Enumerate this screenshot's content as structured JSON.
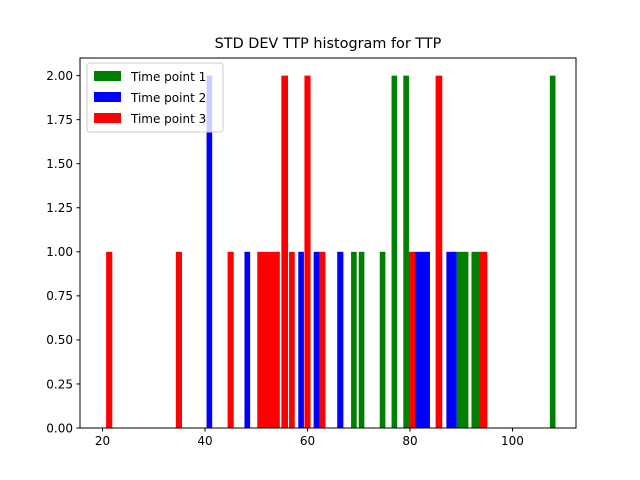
{
  "chart_data": {
    "type": "bar",
    "title": "STD DEV TTP histogram for TTP",
    "xlabel": "",
    "ylabel": "",
    "xlim": [
      15.6,
      112.4
    ],
    "ylim": [
      0,
      2.1
    ],
    "xticks": [
      "20",
      "40",
      "60",
      "80",
      "100"
    ],
    "yticks": [
      "0.00",
      "0.25",
      "0.50",
      "0.75",
      "1.00",
      "1.25",
      "1.50",
      "1.75",
      "2.00"
    ],
    "legend_position": "top-left",
    "series": [
      {
        "name": "Time point 1",
        "color": "#008000",
        "bins": [
          {
            "x0": 68.5,
            "x1": 69.6,
            "count": 1
          },
          {
            "x0": 70.0,
            "x1": 71.1,
            "count": 1
          },
          {
            "x0": 74.1,
            "x1": 75.2,
            "count": 1
          },
          {
            "x0": 76.4,
            "x1": 77.5,
            "count": 2
          },
          {
            "x0": 78.7,
            "x1": 79.8,
            "count": 2
          },
          {
            "x0": 89.1,
            "x1": 91.4,
            "count": 1
          },
          {
            "x0": 92.0,
            "x1": 93.8,
            "count": 1
          },
          {
            "x0": 107.3,
            "x1": 108.4,
            "count": 2
          }
        ]
      },
      {
        "name": "Time point 2",
        "color": "#0000ff",
        "bins": [
          {
            "x0": 40.3,
            "x1": 41.4,
            "count": 2
          },
          {
            "x0": 47.7,
            "x1": 48.8,
            "count": 1
          },
          {
            "x0": 58.2,
            "x1": 59.3,
            "count": 1
          },
          {
            "x0": 61.2,
            "x1": 62.4,
            "count": 1
          },
          {
            "x0": 65.8,
            "x1": 67.0,
            "count": 1
          },
          {
            "x0": 80.9,
            "x1": 83.9,
            "count": 1
          },
          {
            "x0": 87.1,
            "x1": 89.1,
            "count": 1
          }
        ]
      },
      {
        "name": "Time point 3",
        "color": "#ff0000",
        "bins": [
          {
            "x0": 20.7,
            "x1": 21.9,
            "count": 1
          },
          {
            "x0": 34.3,
            "x1": 35.5,
            "count": 1
          },
          {
            "x0": 44.4,
            "x1": 45.6,
            "count": 1
          },
          {
            "x0": 50.2,
            "x1": 54.6,
            "count": 1
          },
          {
            "x0": 54.9,
            "x1": 56.2,
            "count": 2
          },
          {
            "x0": 56.4,
            "x1": 57.5,
            "count": 1
          },
          {
            "x0": 59.4,
            "x1": 60.6,
            "count": 2
          },
          {
            "x0": 62.3,
            "x1": 63.5,
            "count": 1
          },
          {
            "x0": 79.8,
            "x1": 81.0,
            "count": 1
          },
          {
            "x0": 85.0,
            "x1": 86.3,
            "count": 2
          },
          {
            "x0": 93.5,
            "x1": 95.1,
            "count": 1
          }
        ]
      }
    ]
  }
}
